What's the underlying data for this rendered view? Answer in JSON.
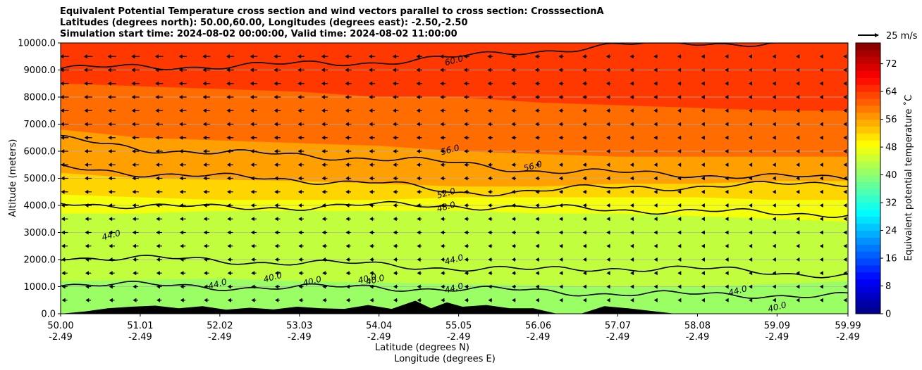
{
  "chart_data": {
    "type": "heatmap",
    "title_lines": [
      "Equivalent Potential Temperature cross section and wind vectors parallel to cross section: CrosssectionA",
      "Latitudes (degrees north): 50.00,60.00, Longitudes (degrees east): -2.50,-2.50",
      "Simulation start time: 2024-08-02 00:00:00, Valid time: 2024-08-02 11:00:00"
    ],
    "ylabel": "Altitude (meters)",
    "xlabel_lines": [
      "Latitude (degrees N)",
      "Longitude (degrees E)"
    ],
    "ylim": [
      0,
      10000
    ],
    "xlim": [
      50.0,
      59.99
    ],
    "y_ticks": [
      "0.0",
      "1000.0",
      "2000.0",
      "3000.0",
      "4000.0",
      "5000.0",
      "6000.0",
      "7000.0",
      "8000.0",
      "9000.0",
      "10000.0"
    ],
    "y_tick_values": [
      0,
      1000,
      2000,
      3000,
      4000,
      5000,
      6000,
      7000,
      8000,
      9000,
      10000
    ],
    "x_tick_values": [
      50.0,
      51.01,
      52.02,
      53.03,
      54.04,
      55.05,
      56.06,
      57.07,
      58.08,
      59.09,
      59.99
    ],
    "x_tick_lat_labels": [
      "50.00",
      "51.01",
      "52.02",
      "53.03",
      "54.04",
      "55.05",
      "56.06",
      "57.07",
      "58.08",
      "59.09",
      "59.99"
    ],
    "x_tick_lon_labels": [
      "-2.49",
      "-2.49",
      "-2.49",
      "-2.49",
      "-2.49",
      "-2.49",
      "-2.49",
      "-2.49",
      "-2.49",
      "-2.49",
      "-2.49"
    ],
    "colorbar": {
      "label": "Equivalent potential temperature $^\\circ$C",
      "label_display": "Equivalent potential temperature ˚C",
      "min": 0,
      "max": 78,
      "tick_labels": [
        "0",
        "8",
        "16",
        "24",
        "32",
        "40",
        "48",
        "56",
        "64",
        "72"
      ],
      "tick_values": [
        0,
        8,
        16,
        24,
        32,
        40,
        48,
        56,
        64,
        72
      ]
    },
    "quiver_key": "25 m/s",
    "layers": [
      {
        "top": [
          1200,
          1250,
          1300,
          1200,
          1150,
          1100,
          1050,
          1000,
          1000,
          1100,
          1200
        ],
        "value": 41
      },
      {
        "top": [
          3700,
          3700,
          3800,
          3800,
          3800,
          3800,
          3700,
          3700,
          3600,
          3500,
          3400
        ],
        "value": 44
      },
      {
        "top": [
          4400,
          4300,
          4200,
          4200,
          4200,
          4300,
          4300,
          4300,
          4300,
          4200,
          4200
        ],
        "value": 48
      },
      {
        "top": [
          5200,
          5000,
          4950,
          4900,
          4800,
          4700,
          4700,
          4800,
          4800,
          4900,
          4900
        ],
        "value": 52
      },
      {
        "top": [
          6800,
          6500,
          6400,
          6300,
          6200,
          6000,
          5900,
          5800,
          5800,
          5800,
          5800
        ],
        "value": 56
      },
      {
        "top": [
          8500,
          8400,
          8300,
          8200,
          8000,
          8000,
          7800,
          7700,
          7600,
          7500,
          7500
        ],
        "value": 60
      },
      {
        "top": [
          10000,
          10000,
          10000,
          10000,
          10000,
          10000,
          10000,
          10000,
          10000,
          10000,
          10000
        ],
        "value": 64
      }
    ],
    "contours": [
      {
        "value": "60.0",
        "y": [
          9050,
          9100,
          9150,
          9200,
          9300,
          9450,
          9700,
          9900,
          10000,
          10000,
          10000
        ]
      },
      {
        "value": "56.0",
        "y": [
          6450,
          6100,
          5950,
          5850,
          5750,
          5550,
          5300,
          5200,
          5150,
          5050,
          5000
        ]
      },
      {
        "value": "52.0",
        "y": [
          5400,
          5200,
          5050,
          4950,
          4850,
          4450,
          4550,
          4650,
          4700,
          4750,
          4850
        ]
      },
      {
        "value": "48.0",
        "y": [
          4100,
          4000,
          3900,
          3950,
          4000,
          4000,
          3900,
          3850,
          3800,
          3700,
          3700
        ]
      },
      {
        "value": "44.0",
        "y": [
          2100,
          2050,
          1950,
          1900,
          1800,
          1700,
          1600,
          1700,
          1650,
          1550,
          1400
        ]
      },
      {
        "value": "40.0",
        "y": [
          1100,
          1050,
          1000,
          950,
          1000,
          900,
          850,
          750,
          700,
          700,
          650
        ]
      }
    ],
    "contour_labels": [
      {
        "text": "60.0",
        "x": 55.0,
        "y": 9250
      },
      {
        "text": "56.0",
        "x": 54.95,
        "y": 5950
      },
      {
        "text": "56.0",
        "x": 56.0,
        "y": 5350
      },
      {
        "text": "52.0",
        "x": 54.9,
        "y": 4350
      },
      {
        "text": "48.0",
        "x": 54.9,
        "y": 3850
      },
      {
        "text": "44.0",
        "x": 50.65,
        "y": 2800
      },
      {
        "text": "44.0",
        "x": 55.0,
        "y": 1900
      },
      {
        "text": "44.0",
        "x": 55.0,
        "y": 850
      },
      {
        "text": "44.0",
        "x": 52.0,
        "y": 1000
      },
      {
        "text": "44.0",
        "x": 58.6,
        "y": 750
      },
      {
        "text": "40.0",
        "x": 53.9,
        "y": 1200
      },
      {
        "text": "40.0",
        "x": 54.0,
        "y": 1150
      },
      {
        "text": "40.0",
        "x": 59.1,
        "y": 150
      },
      {
        "text": "40.0",
        "x": 52.7,
        "y": 1250
      },
      {
        "text": "40.0",
        "x": 53.2,
        "y": 1100
      }
    ],
    "terrain": {
      "x": [
        50.0,
        50.3,
        50.6,
        50.9,
        51.2,
        51.5,
        51.8,
        52.1,
        52.4,
        52.7,
        53.0,
        53.3,
        53.6,
        53.9,
        54.2,
        54.5,
        54.7,
        54.9,
        55.1,
        55.4,
        55.7,
        56.0,
        56.3,
        56.6,
        56.9,
        57.2,
        57.5,
        57.8,
        58.1,
        58.5,
        59.0,
        59.5,
        59.99
      ],
      "h": [
        0,
        80,
        200,
        260,
        300,
        200,
        280,
        150,
        220,
        160,
        260,
        200,
        180,
        320,
        180,
        480,
        200,
        420,
        260,
        320,
        200,
        200,
        0,
        0,
        280,
        200,
        100,
        0,
        0,
        0,
        0,
        0,
        0
      ]
    },
    "wind": {
      "x_spacing": 0.3,
      "levels": [
        500,
        1000,
        1500,
        2000,
        2500,
        3000,
        3500,
        4000,
        4500,
        5000,
        5500,
        6000,
        6500,
        7000,
        7500,
        8000,
        8500,
        9000,
        9500
      ],
      "direction": "toward-south",
      "max_speed_ms": 25
    }
  }
}
